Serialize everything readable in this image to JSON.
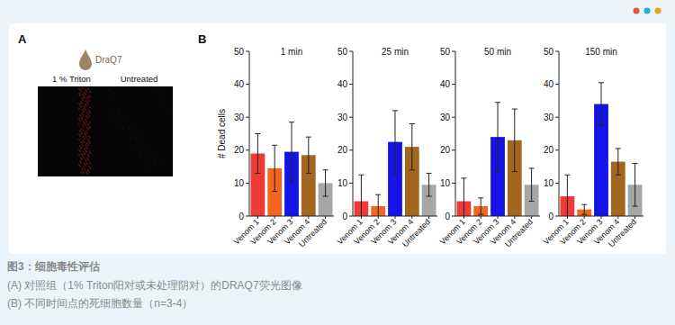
{
  "panel_a": {
    "label": "A",
    "stain": "DraQ7",
    "images": [
      "1 % Triton",
      "Untreated"
    ]
  },
  "panel_b_label": "B",
  "caption": {
    "title": "图3：细胞毒性评估",
    "lines": [
      "(A) 对照组（1% Triton阳对或未处理阴对）的DRAQ7荧光图像",
      "(B) 不同时间点的死细胞数量（n=3-4）"
    ]
  },
  "chart_data": [
    {
      "type": "bar",
      "title": "1 min",
      "y_label": "# Dead cells",
      "categories": [
        "Venom 1",
        "Venom 2",
        "Venom 3",
        "Venom 4",
        "Untreated"
      ],
      "values": [
        19,
        14.5,
        19.5,
        18.5,
        10
      ],
      "errors": [
        6,
        7,
        9,
        5.5,
        4
      ],
      "colors": [
        "#ee3b36",
        "#f4651d",
        "#1414e6",
        "#a3661e",
        "#a6a6a6"
      ],
      "ylim": [
        0,
        50
      ],
      "yticks": [
        0,
        10,
        20,
        30,
        40,
        50
      ],
      "grid": false
    },
    {
      "type": "bar",
      "title": "25 min",
      "categories": [
        "Venom 1",
        "Venom 2",
        "Venom 3",
        "Venom 4",
        "Untreated"
      ],
      "values": [
        4.5,
        3,
        22.5,
        21,
        9.5
      ],
      "errors": [
        8,
        3.5,
        9.5,
        7,
        3.5
      ],
      "colors": [
        "#ee3b36",
        "#f4651d",
        "#1414e6",
        "#a3661e",
        "#a6a6a6"
      ],
      "ylim": [
        0,
        50
      ],
      "yticks": [
        0,
        10,
        20,
        30,
        40,
        50
      ],
      "grid": false
    },
    {
      "type": "bar",
      "title": "50 min",
      "categories": [
        "Venom 1",
        "Venom 2",
        "Venom 3",
        "Venom 4",
        "Untreated"
      ],
      "values": [
        4.5,
        3,
        24,
        23,
        9.5
      ],
      "errors": [
        7,
        2.5,
        10.5,
        9.5,
        5
      ],
      "colors": [
        "#ee3b36",
        "#f4651d",
        "#1414e6",
        "#a3661e",
        "#a6a6a6"
      ],
      "ylim": [
        0,
        50
      ],
      "yticks": [
        0,
        10,
        20,
        30,
        40,
        50
      ],
      "grid": false
    },
    {
      "type": "bar",
      "title": "150 min",
      "categories": [
        "Venom 1",
        "Venom 2",
        "Venom 3",
        "Venom 4",
        "Untreated"
      ],
      "values": [
        6,
        2,
        34,
        16.5,
        9.5
      ],
      "errors": [
        6.5,
        1.5,
        6.5,
        4,
        6.5
      ],
      "colors": [
        "#ee3b36",
        "#f4651d",
        "#1414e6",
        "#a3661e",
        "#a6a6a6"
      ],
      "ylim": [
        0,
        50
      ],
      "yticks": [
        0,
        10,
        20,
        30,
        40,
        50
      ],
      "grid": false
    }
  ]
}
